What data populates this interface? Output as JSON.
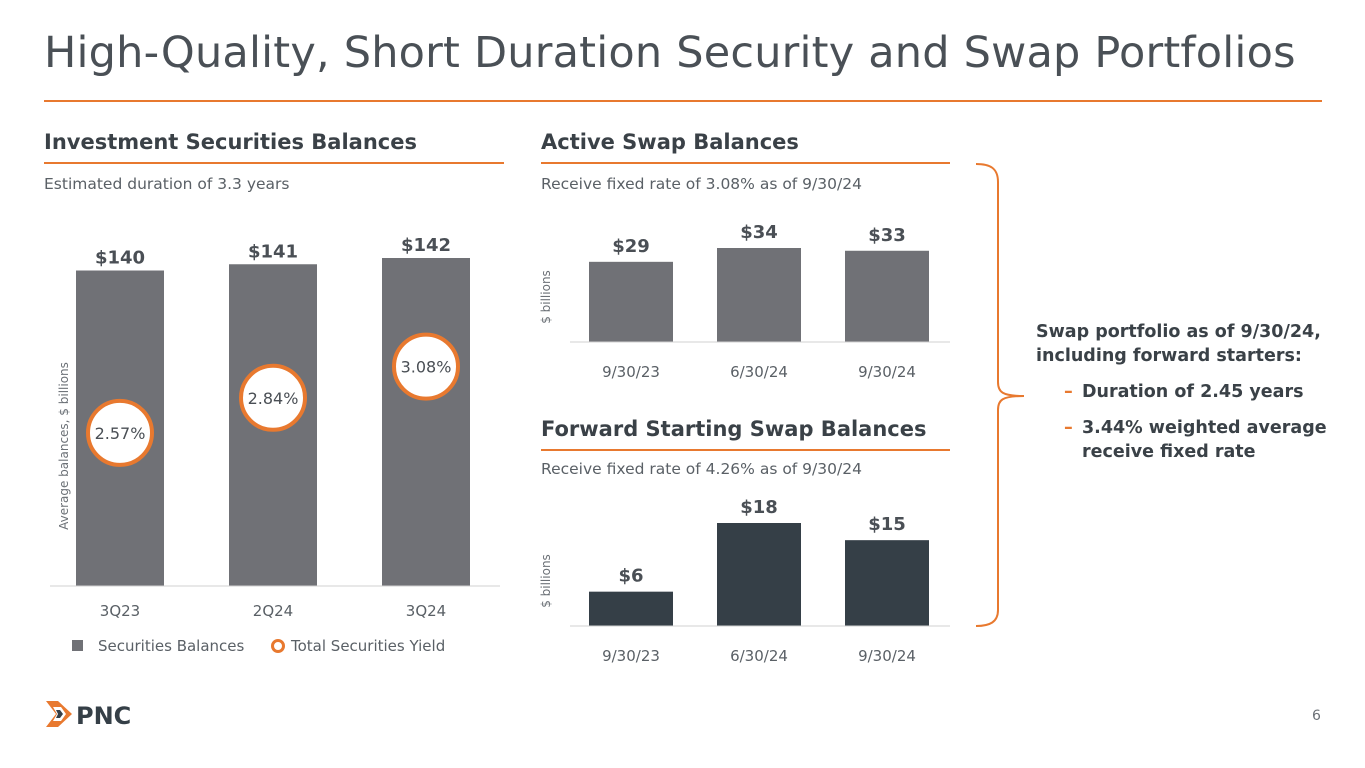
{
  "title": "High-Quality, Short Duration Security and Swap Portfolios",
  "page_number": "6",
  "colors": {
    "accent": "#e8792f",
    "bar_gray": "#707176",
    "bar_dark": "#353f47",
    "text": "#3a4147"
  },
  "logo": {
    "text": "PNC"
  },
  "sections": {
    "investment": {
      "heading": "Investment Securities Balances",
      "subtitle": "Estimated duration of 3.3 years"
    },
    "active": {
      "heading": "Active Swap Balances",
      "subtitle": "Receive fixed rate of 3.08% as of 9/30/24"
    },
    "forward": {
      "heading": "Forward Starting Swap Balances",
      "subtitle": "Receive fixed rate of 4.26% as of 9/30/24"
    }
  },
  "right_note": {
    "intro": "Swap portfolio as of 9/30/24, including forward starters:",
    "bullets": [
      {
        "dash": "–",
        "text": "Duration of 2.45 years"
      },
      {
        "dash": "–",
        "text": "3.44% weighted average receive fixed rate"
      }
    ]
  },
  "chart_data": [
    {
      "type": "bar",
      "title": "Investment Securities Balances",
      "ylabel": "Average balances, $ billions",
      "categories": [
        "3Q23",
        "2Q24",
        "3Q24"
      ],
      "series": [
        {
          "name": "Securities Balances",
          "values": [
            140,
            141,
            142
          ],
          "labels": [
            "$140",
            "$141",
            "$142"
          ]
        },
        {
          "name": "Total Securities Yield",
          "values": [
            2.57,
            2.84,
            3.08
          ],
          "labels": [
            "2.57%",
            "2.84%",
            "3.08%"
          ]
        }
      ],
      "ylim": [
        0,
        142
      ],
      "legend": [
        "Securities Balances",
        "Total Securities Yield"
      ],
      "yield_range": [
        2.3,
        3.3
      ]
    },
    {
      "type": "bar",
      "title": "Active Swap Balances",
      "ylabel": "$ billions",
      "categories": [
        "9/30/23",
        "6/30/24",
        "9/30/24"
      ],
      "values": [
        29,
        34,
        33
      ],
      "labels": [
        "$29",
        "$34",
        "$33"
      ],
      "ylim": [
        0,
        34
      ]
    },
    {
      "type": "bar",
      "title": "Forward Starting Swap Balances",
      "ylabel": "$ billions",
      "categories": [
        "9/30/23",
        "6/30/24",
        "9/30/24"
      ],
      "values": [
        6,
        18,
        15
      ],
      "labels": [
        "$6",
        "$18",
        "$15"
      ],
      "ylim": [
        0,
        18
      ]
    }
  ]
}
